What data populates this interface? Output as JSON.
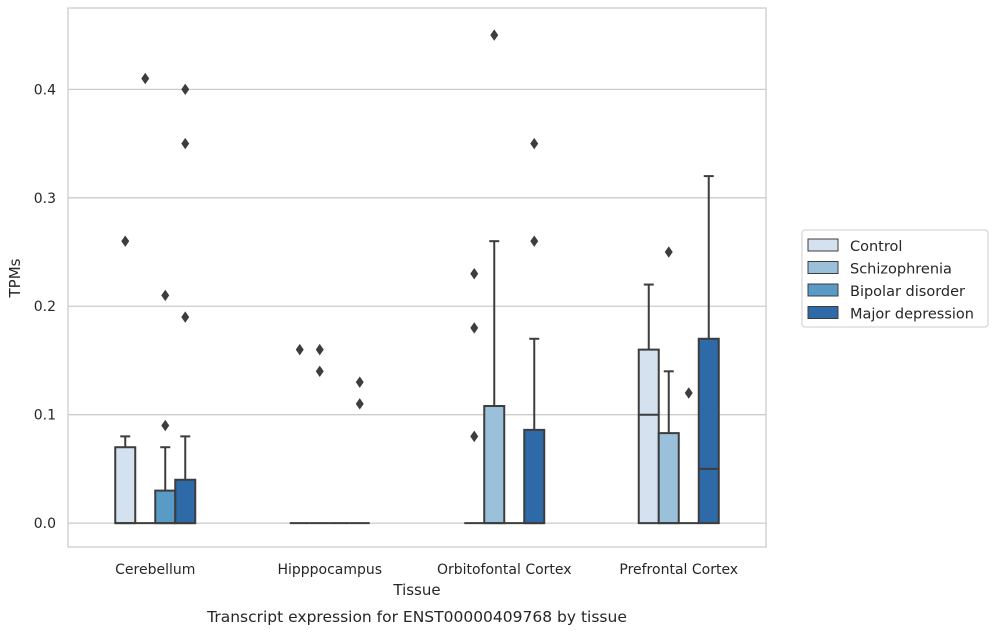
{
  "caption": "Transcript expression for ENST00000409768 by tissue",
  "chart_data": {
    "type": "boxplot",
    "xlabel": "Tissue",
    "ylabel": "TPMs",
    "ylim": [
      -0.022,
      0.475
    ],
    "yticks": [
      0.0,
      0.1,
      0.2,
      0.3,
      0.4
    ],
    "ytick_labels": [
      "0.0",
      "0.1",
      "0.2",
      "0.3",
      "0.4"
    ],
    "grid": "horizontal",
    "legend_position": "right",
    "categories": [
      "Cerebellum",
      "Hipppocampus",
      "Orbitofontal Cortex",
      "Prefrontal Cortex"
    ],
    "series": [
      {
        "name": "Control",
        "color": "#d4e2f0",
        "boxes": [
          {
            "min": 0,
            "q1": 0,
            "median": 0,
            "q3": 0.07,
            "max": 0.08,
            "outliers": [
              0.26
            ]
          },
          {
            "min": 0,
            "q1": 0,
            "median": 0,
            "q3": 0,
            "max": 0,
            "outliers": [
              0.16
            ]
          },
          {
            "min": 0,
            "q1": 0,
            "median": 0,
            "q3": 0,
            "max": 0,
            "outliers": [
              0.08,
              0.18,
              0.23
            ]
          },
          {
            "min": 0,
            "q1": 0,
            "median": 0.1,
            "q3": 0.16,
            "max": 0.22,
            "outliers": []
          }
        ]
      },
      {
        "name": "Schizophrenia",
        "color": "#9bc1da",
        "boxes": [
          {
            "min": 0,
            "q1": 0,
            "median": 0,
            "q3": 0,
            "max": 0,
            "outliers": [
              0.41
            ]
          },
          {
            "min": 0,
            "q1": 0,
            "median": 0,
            "q3": 0,
            "max": 0,
            "outliers": [
              0.16,
              0.14
            ]
          },
          {
            "min": 0,
            "q1": 0,
            "median": 0,
            "q3": 0.108,
            "max": 0.26,
            "outliers": [
              0.45
            ]
          },
          {
            "min": 0,
            "q1": 0,
            "median": 0,
            "q3": 0.083,
            "max": 0.14,
            "outliers": [
              0.25
            ]
          }
        ]
      },
      {
        "name": "Bipolar disorder",
        "color": "#5a9ac6",
        "boxes": [
          {
            "min": 0,
            "q1": 0,
            "median": 0,
            "q3": 0.03,
            "max": 0.07,
            "outliers": [
              0.21,
              0.09
            ]
          },
          {
            "min": 0,
            "q1": 0,
            "median": 0,
            "q3": 0,
            "max": 0,
            "outliers": []
          },
          {
            "min": 0,
            "q1": 0,
            "median": 0,
            "q3": 0,
            "max": 0,
            "outliers": []
          },
          {
            "min": 0,
            "q1": 0,
            "median": 0,
            "q3": 0,
            "max": 0,
            "outliers": [
              0.12
            ]
          }
        ]
      },
      {
        "name": "Major depression",
        "color": "#2d6aa7",
        "boxes": [
          {
            "min": 0,
            "q1": 0,
            "median": 0,
            "q3": 0.04,
            "max": 0.08,
            "outliers": [
              0.4,
              0.35,
              0.19
            ]
          },
          {
            "min": 0,
            "q1": 0,
            "median": 0,
            "q3": 0,
            "max": 0,
            "outliers": [
              0.13,
              0.11
            ]
          },
          {
            "min": 0,
            "q1": 0,
            "median": 0,
            "q3": 0.086,
            "max": 0.17,
            "outliers": [
              0.35,
              0.26
            ]
          },
          {
            "min": 0,
            "q1": 0,
            "median": 0.05,
            "q3": 0.17,
            "max": 0.32,
            "outliers": []
          }
        ]
      }
    ]
  }
}
